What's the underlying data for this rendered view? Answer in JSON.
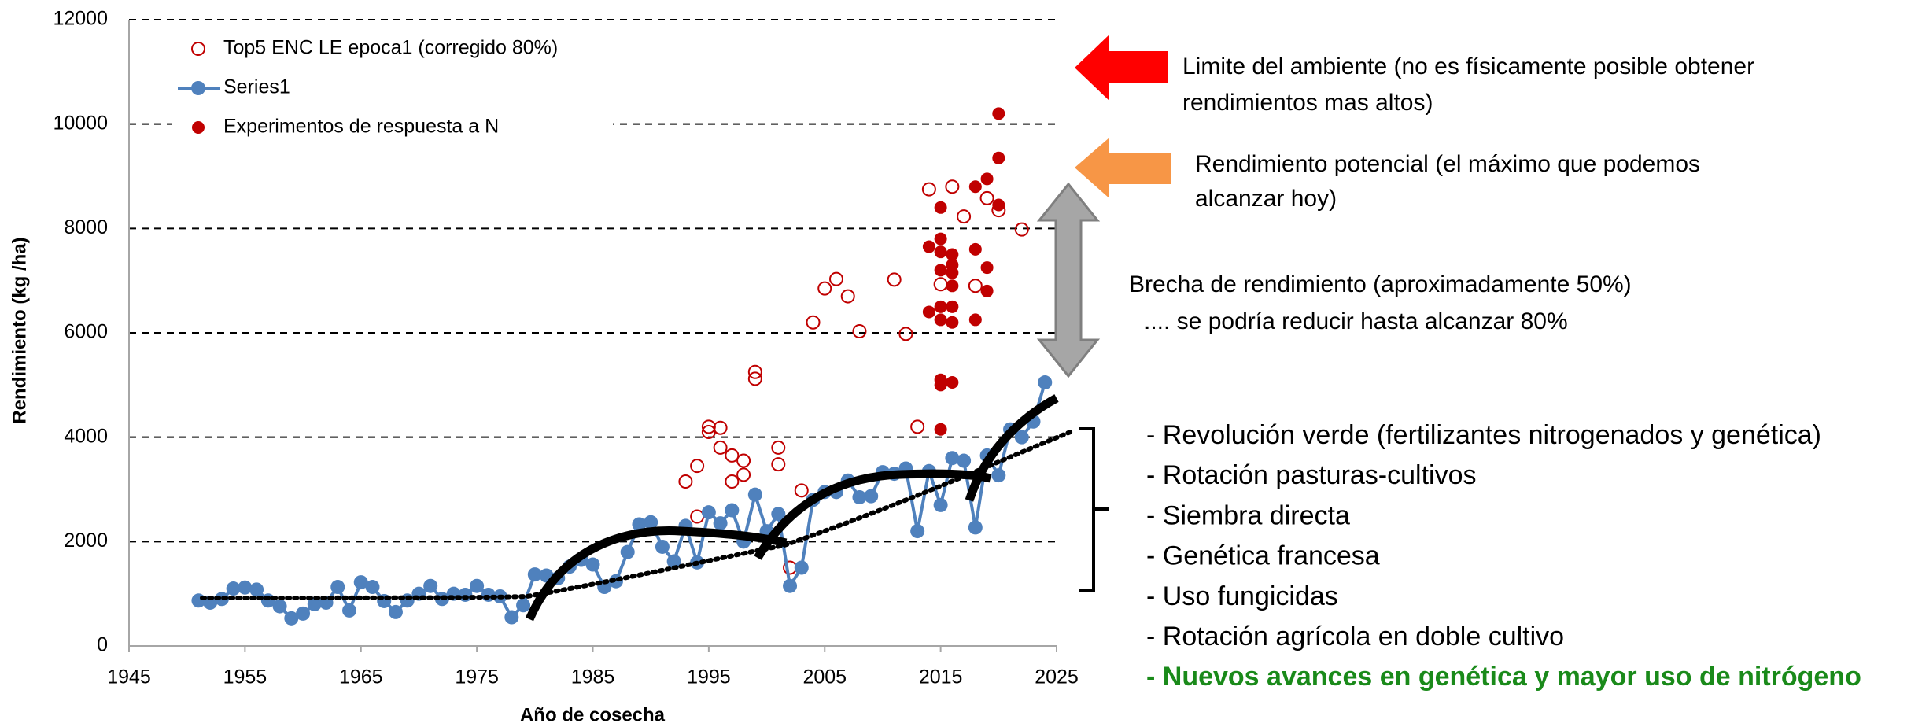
{
  "chart_data": {
    "type": "scatter",
    "x_label": "Año de cosecha",
    "y_label": "Rendimiento (kg /ha)",
    "xlim": [
      1945,
      2025
    ],
    "xticks": [
      1945,
      1955,
      1965,
      1975,
      1985,
      1995,
      2005,
      2015,
      2025
    ],
    "ylim": [
      0,
      12000
    ],
    "yticks": [
      0,
      2000,
      4000,
      6000,
      8000,
      10000,
      12000
    ],
    "grid": true,
    "legend": "upper-left",
    "series": [
      {
        "name": "Top5 ENC LE epoca1 (corregido 80%)",
        "style": "hollow",
        "color": "#c00000",
        "x": [
          1993,
          1994,
          1994,
          1995,
          1995,
          1996,
          1996,
          1997,
          1997,
          1998,
          1998,
          1999,
          1999,
          2001,
          2001,
          2002,
          2003,
          2004,
          2005,
          2006,
          2007,
          2008,
          2011,
          2012,
          2013,
          2014,
          2015,
          2016,
          2017,
          2018,
          2019,
          2020,
          2022
        ],
        "values": [
          3150,
          3450,
          2480,
          4100,
          4200,
          3800,
          4180,
          3650,
          3150,
          3550,
          3280,
          5250,
          5120,
          3800,
          3480,
          1500,
          2980,
          6200,
          6850,
          7030,
          6700,
          6030,
          7020,
          5980,
          4200,
          8750,
          6930,
          8800,
          8230,
          6900,
          8580,
          8350,
          7980
        ]
      },
      {
        "name": "Series1",
        "style": "line",
        "color": "#4f81bd",
        "x": [
          1951,
          1952,
          1953,
          1954,
          1955,
          1956,
          1957,
          1958,
          1959,
          1960,
          1961,
          1962,
          1963,
          1964,
          1965,
          1966,
          1967,
          1968,
          1969,
          1970,
          1971,
          1972,
          1973,
          1974,
          1975,
          1976,
          1977,
          1978,
          1979,
          1980,
          1981,
          1982,
          1983,
          1984,
          1985,
          1986,
          1987,
          1988,
          1989,
          1990,
          1991,
          1992,
          1993,
          1994,
          1995,
          1996,
          1997,
          1998,
          1999,
          2000,
          2001,
          2002,
          2003,
          2004,
          2005,
          2006,
          2007,
          2008,
          2009,
          2010,
          2011,
          2012,
          2013,
          2014,
          2015,
          2016,
          2017,
          2018,
          2019,
          2020,
          2021,
          2022,
          2023,
          2024
        ],
        "values": [
          870,
          830,
          900,
          1100,
          1120,
          1080,
          870,
          760,
          530,
          620,
          800,
          830,
          1130,
          680,
          1220,
          1130,
          860,
          650,
          870,
          1000,
          1150,
          900,
          1000,
          980,
          1150,
          980,
          950,
          550,
          780,
          1370,
          1350,
          1300,
          1520,
          1650,
          1560,
          1130,
          1240,
          1800,
          2330,
          2370,
          1900,
          1620,
          2300,
          1600,
          2560,
          2350,
          2600,
          2000,
          2900,
          2200,
          2530,
          1150,
          1500,
          2800,
          2950,
          2950,
          3170,
          2850,
          2870,
          3330,
          3300,
          3400,
          2200,
          3350,
          2700,
          3600,
          3550,
          2270,
          3650,
          3270,
          4150,
          4000,
          4300,
          5050
        ]
      },
      {
        "name": "Experimentos de respuesta a N",
        "style": "filled",
        "color": "#c00000",
        "x": [
          2014,
          2014,
          2015,
          2015,
          2015,
          2015,
          2015,
          2015,
          2015,
          2015,
          2015,
          2016,
          2016,
          2016,
          2016,
          2016,
          2016,
          2016,
          2018,
          2018,
          2018,
          2019,
          2019,
          2019,
          2020,
          2020,
          2020
        ],
        "values": [
          7650,
          6400,
          8400,
          7800,
          7550,
          7200,
          6500,
          6250,
          5100,
          5000,
          4150,
          7500,
          7300,
          7150,
          6900,
          6500,
          6200,
          5050,
          8800,
          7600,
          6250,
          8950,
          7250,
          6800,
          10200,
          9350,
          8450
        ]
      }
    ]
  },
  "annotations": [
    "Limite del ambiente (no es físicamente posible obtener",
    "rendimientos mas altos)",
    "Rendimiento potencial (el máximo que podemos",
    "alcanzar hoy)",
    "Brecha de rendimiento (aproximadamente 50%)",
    ".... se podría reducir hasta alcanzar 80%"
  ],
  "factors": [
    {
      "text": "- Revolución verde (fertilizantes nitrogenados y genética)",
      "color": "#000000",
      "bold": false
    },
    {
      "text": "- Rotación pasturas-cultivos",
      "color": "#000000",
      "bold": false
    },
    {
      "text": "- Siembra directa",
      "color": "#000000",
      "bold": false
    },
    {
      "text": "- Genética francesa",
      "color": "#000000",
      "bold": false
    },
    {
      "text": "- Uso fungicidas",
      "color": "#000000",
      "bold": false
    },
    {
      "text": "- Rotación agrícola en doble cultivo",
      "color": "#000000",
      "bold": false
    },
    {
      "text": "- Nuevos avances en genética y mayor uso de nitrógeno",
      "color": "#1a8a1a",
      "bold": true
    }
  ]
}
